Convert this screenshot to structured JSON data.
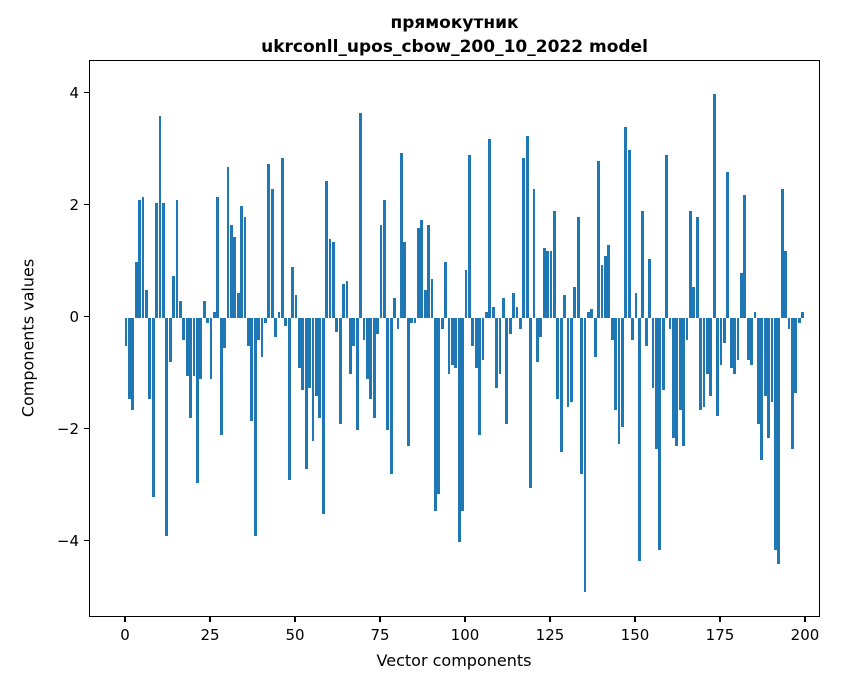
{
  "title": {
    "line1": "прямокутник",
    "line2": "ukrconll_upos_cbow_200_10_2022 model"
  },
  "chart_data": {
    "type": "bar",
    "title": "прямокутник\nukrconll_upos_cbow_200_10_2022 model",
    "xlabel": "Vector components",
    "ylabel": "Components values",
    "bar_color": "#1f77b4",
    "grid": false,
    "legend": null,
    "x_is_index": true,
    "x_ticks": [
      0,
      25,
      50,
      75,
      100,
      125,
      150,
      175,
      200
    ],
    "y_ticks": [
      4,
      2,
      0,
      -2,
      -4
    ],
    "xlim": [
      -10.6,
      204.4
    ],
    "ylim": [
      -5.36,
      4.58
    ],
    "values": [
      -0.5,
      -1.45,
      -1.65,
      1.0,
      2.1,
      2.15,
      0.5,
      -1.45,
      -3.2,
      2.05,
      3.6,
      2.05,
      -3.9,
      -0.8,
      0.75,
      2.1,
      0.3,
      -0.4,
      -1.05,
      -1.8,
      -1.05,
      -2.95,
      -1.1,
      0.3,
      -0.1,
      -1.1,
      0.1,
      2.15,
      -2.1,
      -0.55,
      2.7,
      1.65,
      1.45,
      0.45,
      2.0,
      1.8,
      -0.5,
      -1.85,
      -3.9,
      -0.4,
      -0.7,
      -0.1,
      2.75,
      2.3,
      -0.35,
      0.1,
      2.85,
      -0.15,
      -2.9,
      0.9,
      0.4,
      -0.9,
      -1.3,
      -2.7,
      -1.25,
      -2.2,
      -1.4,
      -1.8,
      -3.5,
      2.45,
      1.4,
      1.35,
      -0.25,
      -1.9,
      0.6,
      0.65,
      -1.0,
      -0.5,
      -2.0,
      3.65,
      -0.4,
      -1.1,
      -1.45,
      -1.8,
      -0.3,
      1.65,
      2.1,
      -2.0,
      -2.8,
      0.35,
      -0.2,
      2.95,
      1.35,
      -2.3,
      -0.1,
      -0.1,
      1.6,
      1.75,
      0.5,
      1.65,
      0.7,
      -3.45,
      -3.15,
      -0.2,
      1.0,
      -1.0,
      -0.85,
      -0.9,
      -4.0,
      -3.45,
      0.85,
      2.9,
      -0.5,
      -0.9,
      -2.1,
      -0.75,
      0.1,
      3.2,
      0.2,
      -1.25,
      -1.0,
      0.35,
      -1.9,
      -0.3,
      0.45,
      0.2,
      -0.2,
      2.85,
      3.25,
      -3.05,
      2.3,
      -0.8,
      -0.35,
      1.25,
      1.2,
      1.2,
      1.9,
      -1.45,
      -2.4,
      0.4,
      -1.6,
      -1.5,
      0.55,
      1.8,
      -2.8,
      -4.9,
      0.1,
      0.15,
      -0.7,
      2.8,
      0.95,
      1.1,
      1.3,
      -0.4,
      -1.65,
      -2.25,
      -1.95,
      3.4,
      3.0,
      -0.4,
      0.45,
      -4.35,
      1.9,
      -0.5,
      1.05,
      -1.25,
      -2.35,
      -4.15,
      -1.3,
      2.9,
      -0.2,
      -2.15,
      -2.3,
      -1.65,
      -2.3,
      -0.4,
      1.9,
      0.55,
      1.8,
      -1.65,
      -1.6,
      -1.0,
      -1.4,
      4.0,
      -1.75,
      -0.85,
      -0.45,
      2.6,
      -0.9,
      -1.0,
      -0.75,
      0.8,
      2.2,
      -0.75,
      -0.85,
      0.1,
      -1.9,
      -2.55,
      -1.4,
      -2.15,
      -1.5,
      -4.15,
      -4.4,
      2.3,
      1.2,
      -0.2,
      -2.35,
      -1.35,
      -0.1,
      0.1
    ]
  }
}
